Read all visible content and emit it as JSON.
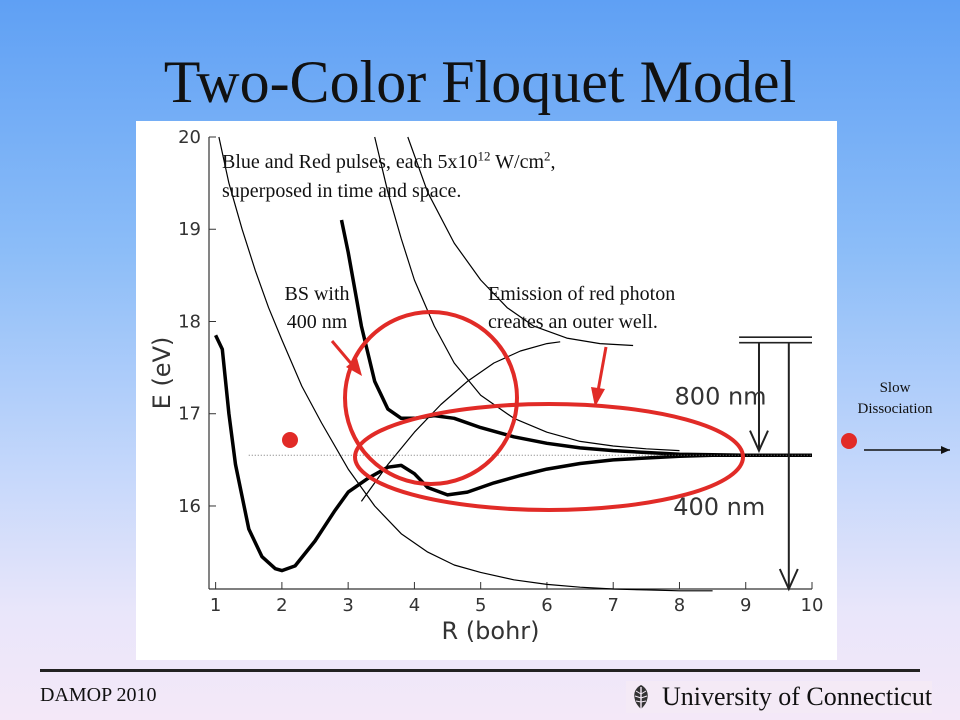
{
  "slide": {
    "title": "Two-Color Floquet Model",
    "caption_line1_a": "Blue and Red pulses, each 5x10",
    "caption_exponent": "12",
    "caption_line1_b": " W/cm",
    "caption_sq": "2",
    "caption_line1_c": ",",
    "caption_line2": "superposed in time and space.",
    "bs_label_line1": "BS with",
    "bs_label_line2": "400 nm",
    "emission_line1": "Emission of red photon",
    "emission_line2": "creates an outer well.",
    "slow_line1": "Slow",
    "slow_line2": "Dissociation",
    "label_800": "800 nm",
    "label_400": "400 nm"
  },
  "footer": {
    "left": "DAMOP 2010",
    "right": "University of Connecticut"
  },
  "colors": {
    "annotation_red": "#e12b27",
    "curve": "#000000"
  },
  "chart_data": {
    "type": "line",
    "xlabel": "R (bohr)",
    "ylabel": "E (eV)",
    "xlim": [
      0.9,
      10
    ],
    "ylim": [
      15.1,
      20
    ],
    "x_ticks": [
      1,
      2,
      3,
      4,
      5,
      6,
      7,
      8,
      9,
      10
    ],
    "y_ticks": [
      16,
      17,
      18,
      19,
      20
    ],
    "series": [
      {
        "style": "thick",
        "x": [
          1.0,
          1.1,
          1.2,
          1.3,
          1.5,
          1.7,
          1.9,
          2.0,
          2.2,
          2.5,
          2.8,
          3.0,
          3.3,
          3.6,
          3.8,
          4.0,
          4.2,
          4.5,
          4.8,
          5.2,
          5.6,
          6.0,
          6.5,
          7.0,
          7.5,
          8.0,
          8.5,
          9.0,
          10.0
        ],
        "y": [
          17.85,
          17.7,
          17.0,
          16.45,
          15.75,
          15.45,
          15.32,
          15.3,
          15.35,
          15.62,
          15.95,
          16.15,
          16.3,
          16.42,
          16.44,
          16.35,
          16.2,
          16.12,
          16.15,
          16.25,
          16.33,
          16.4,
          16.46,
          16.5,
          16.52,
          16.54,
          16.55,
          16.55,
          16.55
        ]
      },
      {
        "style": "thick",
        "x": [
          2.9,
          3.0,
          3.2,
          3.4,
          3.6,
          3.8,
          4.0,
          4.3,
          4.6,
          5.0,
          5.5,
          6.0,
          6.5,
          7.0,
          7.5,
          8.0,
          9.0,
          10.0
        ],
        "y": [
          19.1,
          18.75,
          17.95,
          17.35,
          17.05,
          16.95,
          16.95,
          16.98,
          16.95,
          16.85,
          16.75,
          16.68,
          16.63,
          16.6,
          16.58,
          16.56,
          16.55,
          16.55
        ]
      },
      {
        "style": "thin",
        "x": [
          1.05,
          1.2,
          1.4,
          1.6,
          1.8,
          2.0,
          2.3,
          2.6,
          3.0,
          3.4,
          3.8,
          4.2,
          4.6,
          5.0,
          5.5,
          6.0,
          6.5,
          7.0,
          7.5,
          8.0,
          8.5
        ],
        "y": [
          20.0,
          19.5,
          19.0,
          18.55,
          18.15,
          17.8,
          17.3,
          16.9,
          16.4,
          16.0,
          15.7,
          15.5,
          15.36,
          15.28,
          15.2,
          15.15,
          15.12,
          15.1,
          15.09,
          15.08,
          15.08
        ]
      },
      {
        "style": "thin",
        "x": [
          3.4,
          3.6,
          3.8,
          4.0,
          4.3,
          4.6,
          5.0,
          5.5,
          6.0,
          6.5,
          7.0,
          7.5,
          8.0
        ],
        "y": [
          20.0,
          19.4,
          18.9,
          18.45,
          17.95,
          17.55,
          17.2,
          16.95,
          16.8,
          16.7,
          16.65,
          16.62,
          16.6
        ]
      },
      {
        "style": "thin",
        "x": [
          3.9,
          4.2,
          4.6,
          5.0,
          5.4,
          5.8,
          6.3,
          6.8,
          7.3
        ],
        "y": [
          20.0,
          19.4,
          18.85,
          18.45,
          18.15,
          17.95,
          17.82,
          17.76,
          17.74
        ]
      },
      {
        "style": "thin",
        "x": [
          3.2,
          3.6,
          4.0,
          4.4,
          4.8,
          5.2,
          5.6,
          6.0,
          6.2
        ],
        "y": [
          16.05,
          16.45,
          16.8,
          17.1,
          17.35,
          17.55,
          17.68,
          17.76,
          17.78
        ]
      }
    ]
  }
}
